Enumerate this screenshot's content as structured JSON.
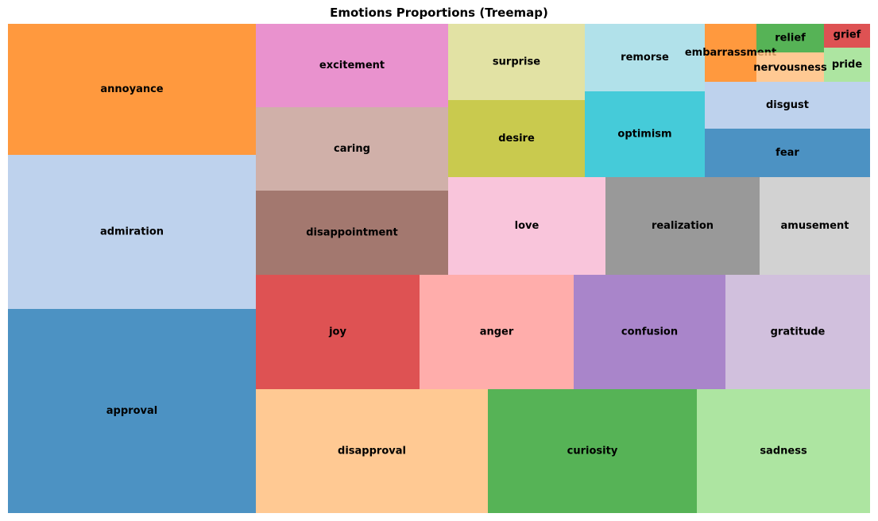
{
  "chart_data": {
    "type": "treemap",
    "title": "Emotions Proportions (Treemap)",
    "items": [
      {
        "label": "approval",
        "value": 8057,
        "color": "#1f77b4"
      },
      {
        "label": "admiration",
        "value": 6097,
        "color": "#aec7e8"
      },
      {
        "label": "annoyance",
        "value": 5113,
        "color": "#ff7f0e"
      },
      {
        "label": "disapproval",
        "value": 4527,
        "color": "#ffbb78"
      },
      {
        "label": "curiosity",
        "value": 4087,
        "color": "#2ca02c"
      },
      {
        "label": "sadness",
        "value": 3382,
        "color": "#98df8a"
      },
      {
        "label": "joy",
        "value": 2966,
        "color": "#d62728"
      },
      {
        "label": "anger",
        "value": 2800,
        "color": "#ff9896"
      },
      {
        "label": "confusion",
        "value": 2754,
        "color": "#9467bd"
      },
      {
        "label": "gratitude",
        "value": 2700,
        "color": "#c5b0d5"
      },
      {
        "label": "disappointment",
        "value": 2531,
        "color": "#8c564b"
      },
      {
        "label": "caring",
        "value": 2199,
        "color": "#c49c94"
      },
      {
        "label": "excitement",
        "value": 2149,
        "color": "#e377c2"
      },
      {
        "label": "love",
        "value": 2414,
        "color": "#f7b6d2"
      },
      {
        "label": "realization",
        "value": 2371,
        "color": "#7f7f7f"
      },
      {
        "label": "amusement",
        "value": 1676,
        "color": "#c7c7c7"
      },
      {
        "label": "desire",
        "value": 1402,
        "color": "#bcbd22"
      },
      {
        "label": "surprise",
        "value": 1402,
        "color": "#dbdb8d"
      },
      {
        "label": "optimism",
        "value": 1280,
        "color": "#17becf"
      },
      {
        "label": "remorse",
        "value": 1088,
        "color": "#9edae5"
      },
      {
        "label": "fear",
        "value": 1070,
        "color": "#1f77b4"
      },
      {
        "label": "disgust",
        "value": 1038,
        "color": "#aec7e8"
      },
      {
        "label": "embarrassment",
        "value": 536,
        "color": "#ff7f0e"
      },
      {
        "label": "nervousness",
        "value": 314,
        "color": "#ffbb78"
      },
      {
        "label": "relief",
        "value": 380,
        "color": "#2ca02c"
      },
      {
        "label": "pride",
        "value": 300,
        "color": "#98df8a"
      },
      {
        "label": "grief",
        "value": 170,
        "color": "#d62728"
      }
    ]
  }
}
